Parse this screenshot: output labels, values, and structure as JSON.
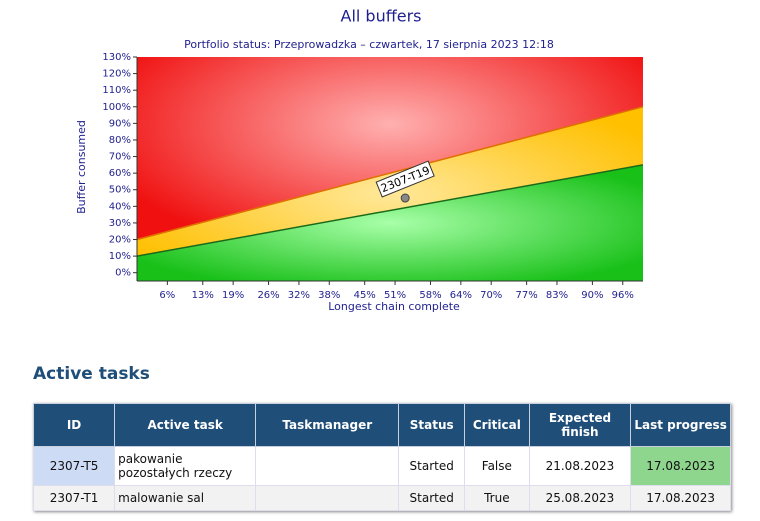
{
  "chart_data": {
    "type": "fever",
    "title": "All buffers",
    "subtitle": "Portfolio status: Przeprowadzka – czwartek, 17 sierpnia 2023 12:18",
    "ylabel": "Buffer consumed",
    "xlabel": "Longest chain complete",
    "xlim": [
      0,
      100
    ],
    "ylim": [
      -5,
      130
    ],
    "yticks": [
      {
        "value": 0,
        "label": "0%"
      },
      {
        "value": 10,
        "label": "10%"
      },
      {
        "value": 20,
        "label": "20%"
      },
      {
        "value": 30,
        "label": "30%"
      },
      {
        "value": 40,
        "label": "40%"
      },
      {
        "value": 50,
        "label": "50%"
      },
      {
        "value": 60,
        "label": "60%"
      },
      {
        "value": 70,
        "label": "70%"
      },
      {
        "value": 80,
        "label": "80%"
      },
      {
        "value": 90,
        "label": "90%"
      },
      {
        "value": 100,
        "label": "100%"
      },
      {
        "value": 110,
        "label": "110%"
      },
      {
        "value": 120,
        "label": "120%"
      },
      {
        "value": 130,
        "label": "130%"
      }
    ],
    "xticks": [
      {
        "value": 6,
        "label": "6%"
      },
      {
        "value": 13,
        "label": "13%"
      },
      {
        "value": 19,
        "label": "19%"
      },
      {
        "value": 26,
        "label": "26%"
      },
      {
        "value": 32,
        "label": "32%"
      },
      {
        "value": 38,
        "label": "38%"
      },
      {
        "value": 45,
        "label": "45%"
      },
      {
        "value": 51,
        "label": "51%"
      },
      {
        "value": 58,
        "label": "58%"
      },
      {
        "value": 64,
        "label": "64%"
      },
      {
        "value": 70,
        "label": "70%"
      },
      {
        "value": 77,
        "label": "77%"
      },
      {
        "value": 83,
        "label": "83%"
      },
      {
        "value": 90,
        "label": "90%"
      },
      {
        "value": 96,
        "label": "96%"
      }
    ],
    "zones": [
      {
        "color": "#ffc000",
        "x": [
          0,
          100
        ],
        "values": [
          20,
          100
        ]
      },
      {
        "color": "#22c022",
        "x": [
          0,
          100
        ],
        "values": [
          10,
          65
        ]
      }
    ],
    "points": [
      {
        "label": "2307-T19",
        "x": 53,
        "y": 45
      }
    ]
  },
  "section_title": "Active tasks",
  "table": {
    "headers": [
      "ID",
      "Active task",
      "Taskmanager",
      "Status",
      "Critical",
      "Expected finish",
      "Last progress"
    ],
    "rows": [
      [
        "2307-T5",
        "pakowanie pozostałych rzeczy",
        null,
        "Started",
        "False",
        "21.08.2023",
        "17.08.2023"
      ],
      [
        "2307-T1",
        "malowanie sal",
        null,
        "Started",
        "True",
        "25.08.2023",
        "17.08.2023"
      ]
    ]
  }
}
